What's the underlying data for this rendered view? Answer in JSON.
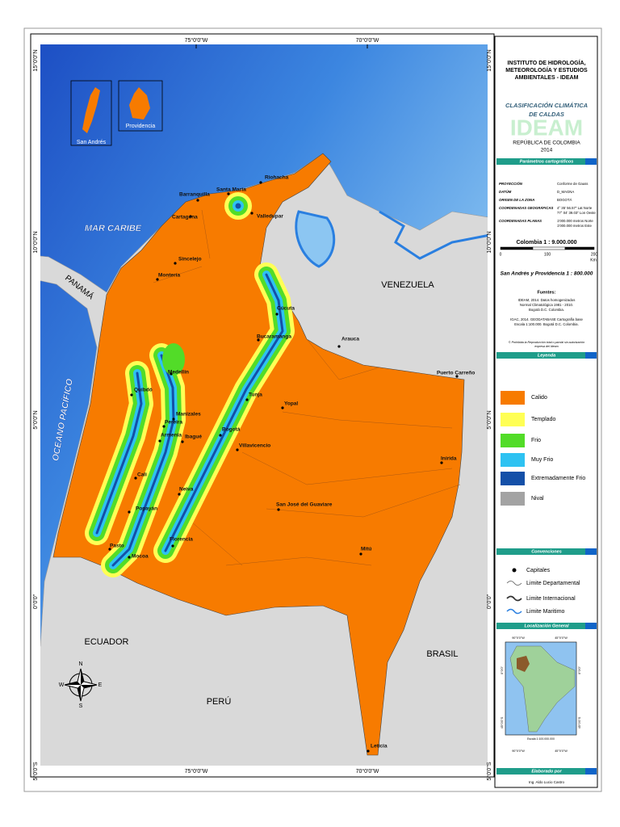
{
  "map": {
    "coordinates": {
      "top": [
        "75°0'0\"W",
        "70°0'0\"W"
      ],
      "bottom": [
        "75°0'0\"W",
        "70°0'0\"W"
      ],
      "left": [
        "15°0'0\"N",
        "10°0'0\"N",
        "5°0'0\"N",
        "0°0'0\"",
        "5°0'0\"S"
      ],
      "right": [
        "15°0'0\"N",
        "10°0'0\"N",
        "5°0'0\"N",
        "0°0'0\"",
        "5°0'0\"S"
      ]
    },
    "insets": [
      "San Andrés",
      "Providencia"
    ],
    "seas": [
      "MAR CARIBE",
      "OCEANO PACÍFICO"
    ],
    "countries": [
      "PANAMÁ",
      "VENEZUELA",
      "ECUADOR",
      "BRASIL",
      "PERÚ"
    ],
    "north_arrow": [
      "N",
      "E",
      "S",
      "W"
    ],
    "cities": [
      "Riohacha",
      "Santa Marta",
      "Barranquilla",
      "Cartagena",
      "Valledupar",
      "Sincelejo",
      "Montería",
      "Cúcuta",
      "Bucaramanga",
      "Arauca",
      "Puerto Carreño",
      "Medellín",
      "Quibdó",
      "Tunja",
      "Yopal",
      "Manizales",
      "Pereira",
      "Bogotá",
      "Armenia",
      "Ibagué",
      "Villavicencio",
      "Inírida",
      "Cali",
      "Neiva",
      "San José del Guaviare",
      "Popayán",
      "Pasto",
      "Florencia",
      "Mocoa",
      "Mitú",
      "Leticia"
    ]
  },
  "panel": {
    "institute": [
      "INSTITUTO DE HIDROLOGÍA,",
      "METEOROLOGÍA Y ESTUDIOS",
      "AMBIENTALES - IDEAM"
    ],
    "title": [
      "CLASIFICACIÓN CLIMÁTICA",
      "DE CALDAS"
    ],
    "logo": "IDEAM",
    "country": "REPÚBLICA DE COLOMBIA",
    "year": "2014",
    "params_header": "Parámetros cartográficos",
    "params": [
      {
        "label": "PROYECCIÓN",
        "value": [
          "Conforme de Gauss"
        ]
      },
      {
        "label": "DATÚM",
        "value": [
          "D_MAGNA"
        ]
      },
      {
        "label": "ORIGEN DE LA ZONA",
        "value": [
          "BOGOTÁ"
        ]
      },
      {
        "label": "COORDENADAS GEOGRÁFICAS",
        "value": [
          "4° 35' 56.57\" Lat Norte",
          "77° 04' 39.03\" Lon Oeste"
        ]
      },
      {
        "label": "COORDENADAS PLANAS",
        "value": [
          "1'000.000 metros Norte",
          "1'000.000 metros Este"
        ]
      }
    ],
    "scale": "Colombia  1 : 9.000.000",
    "scale_bar": [
      "0",
      "100",
      "200"
    ],
    "scale_unit": "Km",
    "inset_scale": "San Andrés y Providencia  1 : 800.000",
    "sources_title": "Fuentes:",
    "sources": [
      "IDEAM, 2014. Datos homogenizados",
      "Normal Climatológica 1981 - 2010.",
      "Bogotá D.C. Colombia.",
      "",
      "IGAC, 2014. GEODATABASE Cartografía base",
      "Escala 1:100.000. Bogotá D.C. Colombia."
    ],
    "rights": [
      "© Prohibida la Reproducción total o parcial sin autorización",
      "expresa del Ideam"
    ],
    "legend_header": "Leyenda",
    "legend": [
      {
        "label": "Calido",
        "color": "#f77b00"
      },
      {
        "label": "Templado",
        "color": "#ffff55"
      },
      {
        "label": "Frio",
        "color": "#52dc28"
      },
      {
        "label": "Muy Frio",
        "color": "#2ec2f2"
      },
      {
        "label": "Extremadamente Frio",
        "color": "#1450a8"
      },
      {
        "label": "Nival",
        "color": "#a3a3a3"
      }
    ],
    "conventions_header": "Convenciones",
    "conventions": [
      "Capitales",
      "Limite Departamental",
      "Limite Internacional",
      "Limite Maritimo"
    ],
    "location_header": "Localización General",
    "location_coords": {
      "top": [
        "90°0'0\"W",
        "45°0'0\"W"
      ],
      "bottom": [
        "90°0'0\"W",
        "45°0'0\"W"
      ],
      "left": [
        "0°0'0\"",
        "45°0'0\"S"
      ],
      "right": [
        "0°0'0\"",
        "45°0'0\"S"
      ]
    },
    "location_scale": "Escala 1:100.000.000",
    "author_header": "Elaborado por",
    "author": "Ing. Aldo Lucio Castro"
  }
}
